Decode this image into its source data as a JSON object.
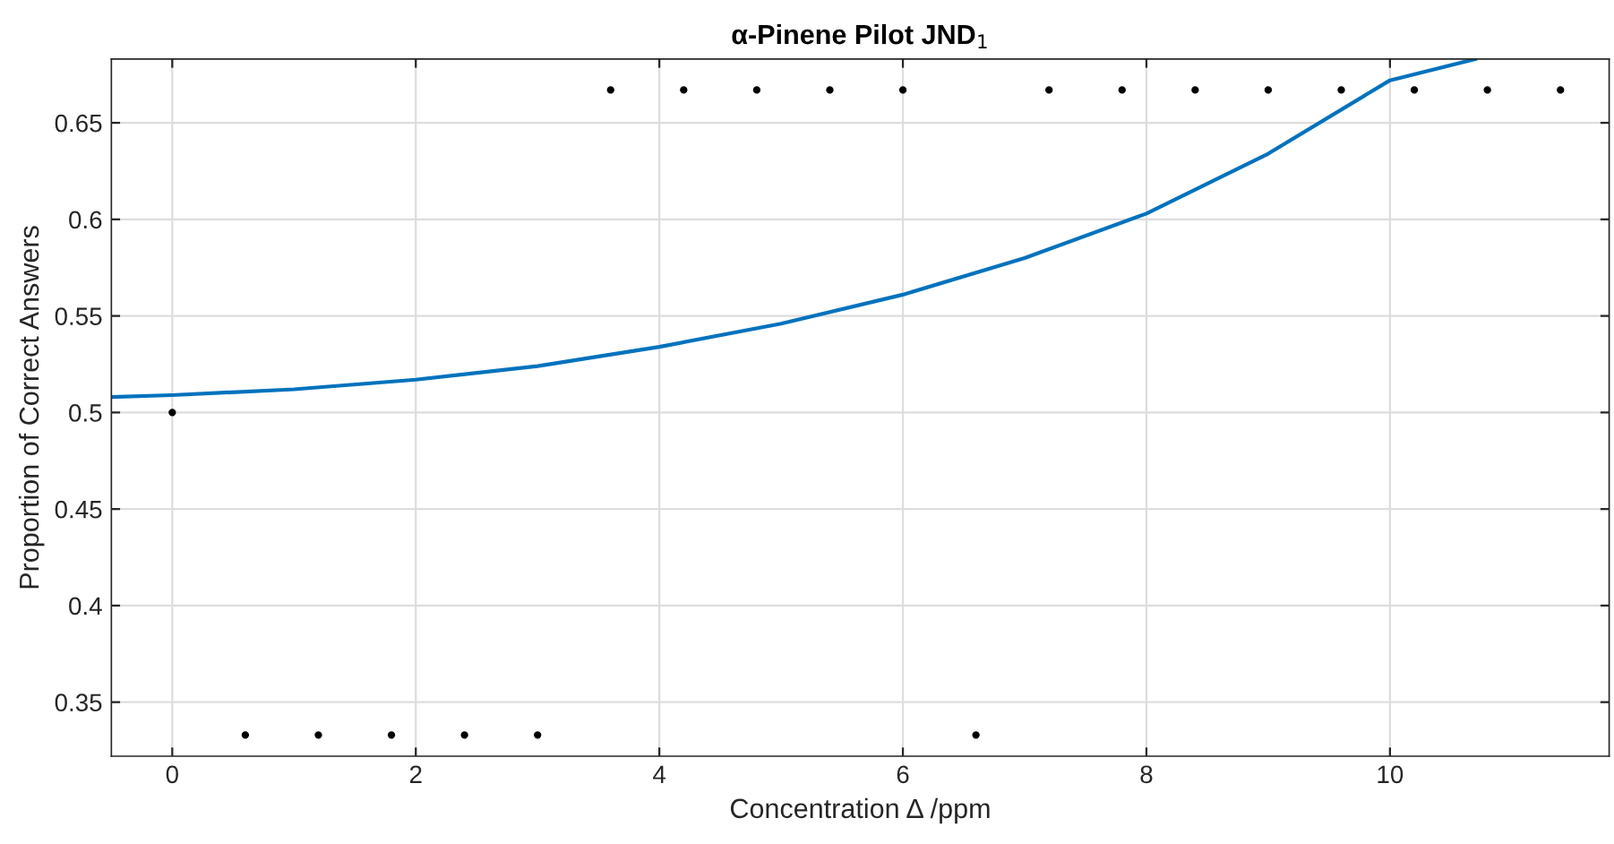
{
  "chart_data": {
    "type": "scatter",
    "title": "α-Pinene Pilot JND$_{1}$",
    "xlabel": "Concentration Δ /ppm",
    "ylabel": "Proportion of Correct Answers",
    "x": [
      0,
      0.6,
      1.2,
      1.8,
      2.4,
      3.0,
      3.6,
      4.2,
      4.8,
      5.4,
      6.0,
      6.6,
      7.2,
      7.8,
      8.4,
      9.0,
      9.6,
      10.2,
      10.8,
      11.4
    ],
    "series": [
      {
        "color": "#000000",
        "marker": "circle",
        "values": [
          0.5,
          0.333,
          0.333,
          0.333,
          0.333,
          0.333,
          0.667,
          0.667,
          0.667,
          0.667,
          0.667,
          0.333,
          0.667,
          0.667,
          0.667,
          0.667,
          0.667,
          0.667,
          0.667,
          0.667
        ]
      },
      {
        "type": "line",
        "color": "#0072bd",
        "marker": "none",
        "line_style": "solid",
        "x": [
          -0.5,
          0,
          1,
          2,
          3,
          4,
          5,
          6,
          7,
          8,
          9,
          10,
          10.7
        ],
        "values": [
          0.508,
          0.509,
          0.512,
          0.517,
          0.524,
          0.534,
          0.546,
          0.561,
          0.58,
          0.603,
          0.634,
          0.672,
          0.683
        ]
      }
    ],
    "xlim": [
      -0.5,
      11.8
    ],
    "ylim": [
      0.322,
      0.683
    ],
    "xticks": [
      0,
      2,
      4,
      6,
      8,
      10
    ],
    "yticks": [
      0.35,
      0.4,
      0.45,
      0.5,
      0.55,
      0.6,
      0.65
    ],
    "grid": true,
    "legend": false
  }
}
